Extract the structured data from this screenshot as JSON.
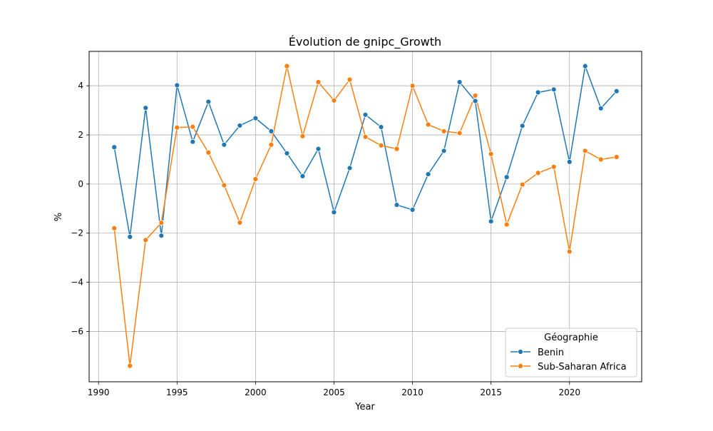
{
  "chart_data": {
    "type": "line",
    "title": "Évolution de gnipc_Growth",
    "xlabel": "Year",
    "ylabel": "%",
    "xlim": [
      1989.4,
      2024.6
    ],
    "ylim": [
      -8.05,
      5.4
    ],
    "x_ticks": [
      1990,
      1995,
      2000,
      2005,
      2010,
      2015,
      2020
    ],
    "y_ticks": [
      -6,
      -4,
      -2,
      0,
      2,
      4
    ],
    "grid": true,
    "legend": {
      "title": "Géographie",
      "placement": "lower right"
    },
    "x": [
      1991,
      1992,
      1993,
      1994,
      1995,
      1996,
      1997,
      1998,
      1999,
      2000,
      2001,
      2002,
      2003,
      2004,
      2005,
      2006,
      2007,
      2008,
      2009,
      2010,
      2011,
      2012,
      2013,
      2014,
      2015,
      2016,
      2017,
      2018,
      2019,
      2020,
      2021,
      2022,
      2023
    ],
    "series": [
      {
        "name": "Benin",
        "color": "#1f77b4",
        "values": [
          1.5,
          -2.15,
          3.1,
          -2.1,
          4.02,
          1.72,
          3.35,
          1.6,
          2.38,
          2.68,
          2.15,
          1.25,
          0.32,
          1.43,
          -1.15,
          0.65,
          2.82,
          2.32,
          -0.85,
          -1.05,
          0.4,
          1.35,
          4.15,
          3.38,
          -1.52,
          0.28,
          2.37,
          3.73,
          3.85,
          0.9,
          4.8,
          3.08,
          3.78
        ]
      },
      {
        "name": "Sub-Saharan Africa",
        "color": "#ff7f0e",
        "values": [
          -1.8,
          -7.4,
          -2.28,
          -1.58,
          2.3,
          2.33,
          1.28,
          -0.05,
          -1.57,
          0.2,
          1.6,
          4.8,
          1.95,
          4.15,
          3.4,
          4.25,
          1.92,
          1.57,
          1.43,
          4.0,
          2.42,
          2.15,
          2.07,
          3.6,
          1.22,
          -1.65,
          -0.02,
          0.45,
          0.7,
          -2.75,
          1.35,
          1.0,
          1.1
        ]
      }
    ]
  }
}
